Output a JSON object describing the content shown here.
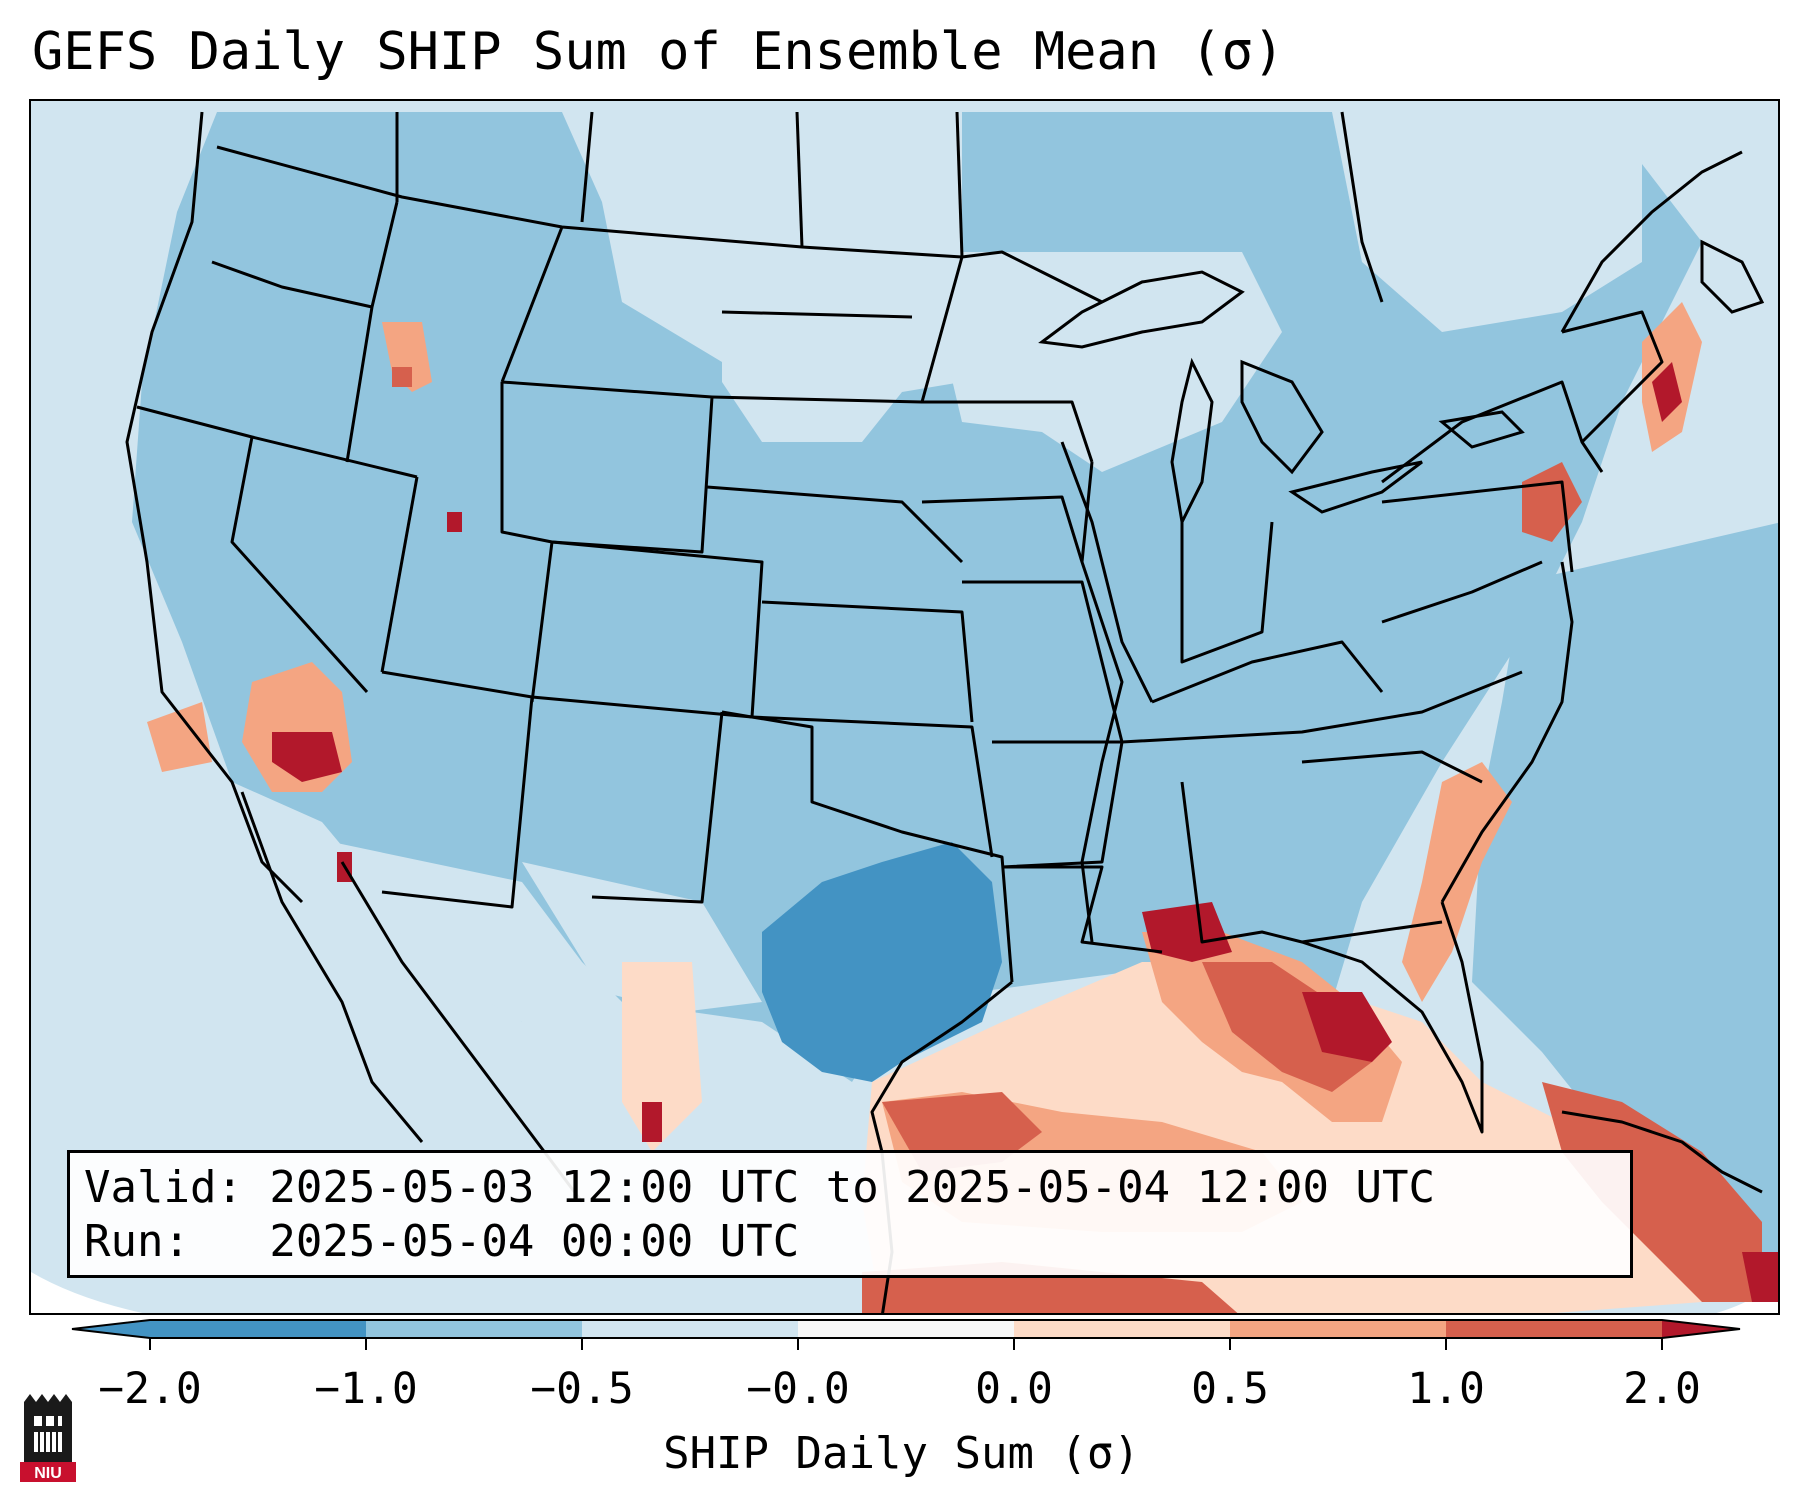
{
  "title": "GEFS Daily SHIP Sum of Ensemble Mean (σ)",
  "info": {
    "valid_line": "Valid: 2025-05-03 12:00 UTC to 2025-05-04 12:00 UTC",
    "run_line": "Run:   2025-05-04 00:00 UTC"
  },
  "colorbar": {
    "label": "SHIP Daily Sum (σ)",
    "ticks": [
      "−2.0",
      "−1.0",
      "−0.5",
      "−0.0",
      "0.0",
      "0.5",
      "1.0",
      "2.0"
    ],
    "colors": [
      "#4393c3",
      "#92c5de",
      "#d1e5f0",
      "#f7f7f7",
      "#fddbc7",
      "#f4a582",
      "#d6604d",
      "#b2182b"
    ],
    "extend": "both"
  },
  "map": {
    "projection": "lambert-conformal",
    "region": "CONUS",
    "ocean_color": "#d1e5f0",
    "field_description_values": {
      "land_dominant": "−1.0 to −0.5",
      "south_central_texas": "−2.0 to −1.0",
      "gulf_coast_and_southeast": "0.5 to 2.0",
      "southern_california": "1.0 to 2.0"
    }
  },
  "logo": {
    "text": "NIU",
    "icon": "niu-logo-icon"
  }
}
